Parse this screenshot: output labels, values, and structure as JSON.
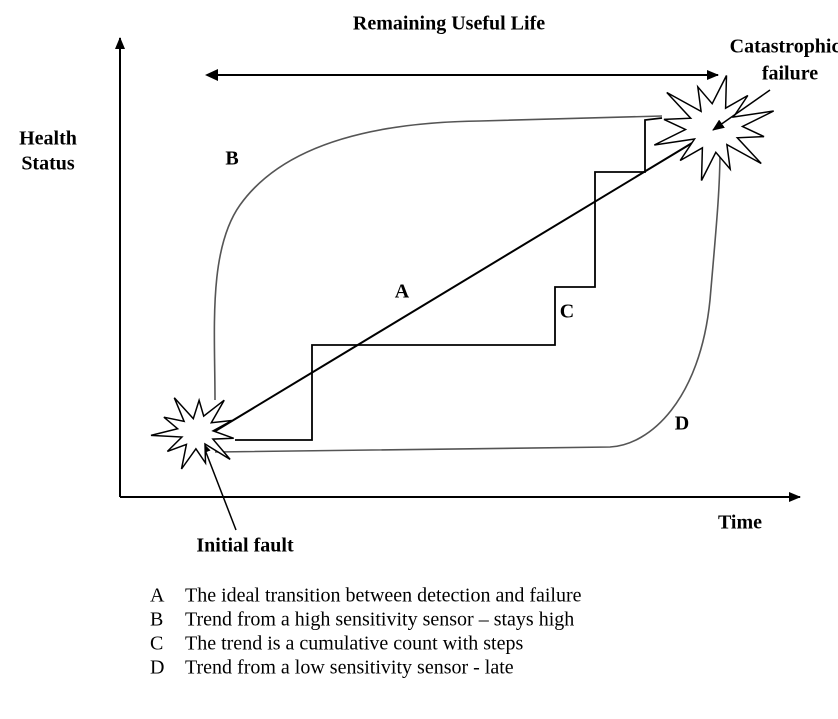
{
  "title": "Remaining Useful Life",
  "failure_label": [
    "Catastrophic",
    "failure"
  ],
  "y_axis_label": [
    "Health",
    "Status"
  ],
  "x_axis_label": "Time",
  "fault_label": "Initial fault",
  "curve_labels": {
    "A": "A",
    "B": "B",
    "C": "C",
    "D": "D"
  },
  "legend": [
    {
      "key": "A",
      "text": "The ideal transition between detection and failure"
    },
    {
      "key": "B",
      "text": "Trend from a high sensitivity sensor – stays high"
    },
    {
      "key": "C",
      "text": "The trend is a cumulative count with steps"
    },
    {
      "key": "D",
      "text": "Trend from a low sensitivity sensor - late"
    }
  ]
}
